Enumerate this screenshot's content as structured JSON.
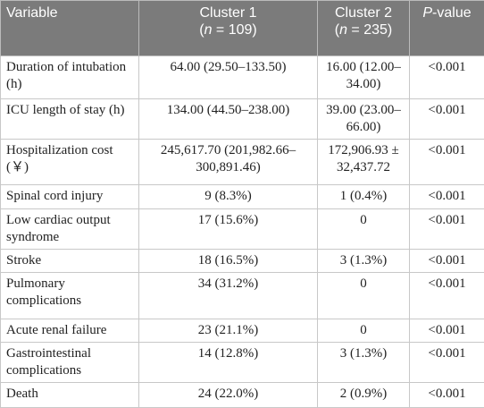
{
  "table": {
    "header": {
      "variable": "Variable",
      "cluster1": {
        "name": "Cluster 1",
        "pre": "(",
        "italic": "n",
        "post": " = 109)"
      },
      "cluster2": {
        "name": "Cluster 2",
        "pre": "(",
        "italic": "n",
        "post": " = 235)"
      },
      "p_value": {
        "italic": "P",
        "post": "-value"
      }
    },
    "rows": [
      [
        "Duration of intubation (h)",
        "64.00 (29.50–133.50)",
        "16.00 (12.00–34.00)",
        "<0.001"
      ],
      [
        "ICU length of stay (h)",
        "134.00 (44.50–238.00)",
        "39.00 (23.00–66.00)",
        "<0.001"
      ],
      [
        "Hospitalization cost (￥)",
        "245,617.70 (201,982.66–300,891.46)",
        "172,906.93 ± 32,437.72",
        "<0.001"
      ],
      [
        "Spinal cord injury",
        "9 (8.3%)",
        "1 (0.4%)",
        "<0.001"
      ],
      [
        "Low cardiac output syndrome",
        "17 (15.6%)",
        "0",
        "<0.001"
      ],
      [
        "Stroke",
        "18 (16.5%)",
        "3 (1.3%)",
        "<0.001"
      ],
      [
        "Pulmonary complications",
        "34 (31.2%)",
        "0",
        "<0.001"
      ],
      [
        "Acute renal failure",
        "23 (21.1%)",
        "0",
        "<0.001"
      ],
      [
        "Gastrointestinal complications",
        "14 (12.8%)",
        "3 (1.3%)",
        "<0.001"
      ],
      [
        "Death",
        "24 (22.0%)",
        "2 (0.9%)",
        "<0.001"
      ]
    ]
  }
}
